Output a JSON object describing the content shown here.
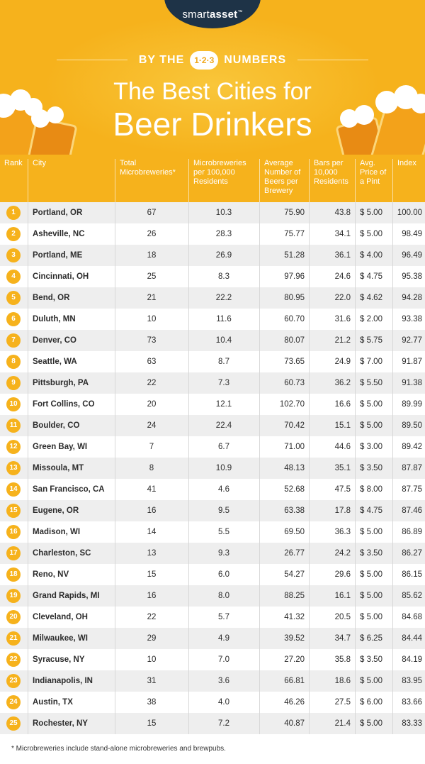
{
  "brand": {
    "name_light": "smart",
    "name_bold": "asset",
    "mark": "™"
  },
  "tagline": {
    "left": "BY THE",
    "badge": "1·2·3",
    "right": "NUMBERS"
  },
  "title": {
    "line1": "The Best Cities for",
    "line2": "Beer Drinkers"
  },
  "colors": {
    "header": "#f6b21c",
    "badge": "#1e3347",
    "row_alt": "#eeeeee"
  },
  "columns": [
    "Rank",
    "City",
    "Total Microbreweries*",
    "Microbreweries per 100,000 Residents",
    "Average Number of Beers per Brewery",
    "Bars per 10,000 Residents",
    "Avg. Price of a Pint",
    "Index"
  ],
  "rows": [
    {
      "rank": "1",
      "city": "Portland, OR",
      "total": "67",
      "per100k": "10.3",
      "beers": "75.90",
      "bars": "43.8",
      "price": "$ 5.00",
      "index": "100.00"
    },
    {
      "rank": "2",
      "city": "Asheville, NC",
      "total": "26",
      "per100k": "28.3",
      "beers": "75.77",
      "bars": "34.1",
      "price": "$ 5.00",
      "index": "98.49"
    },
    {
      "rank": "3",
      "city": "Portland, ME",
      "total": "18",
      "per100k": "26.9",
      "beers": "51.28",
      "bars": "36.1",
      "price": "$ 4.00",
      "index": "96.49"
    },
    {
      "rank": "4",
      "city": "Cincinnati, OH",
      "total": "25",
      "per100k": "8.3",
      "beers": "97.96",
      "bars": "24.6",
      "price": "$ 4.75",
      "index": "95.38"
    },
    {
      "rank": "5",
      "city": "Bend, OR",
      "total": "21",
      "per100k": "22.2",
      "beers": "80.95",
      "bars": "22.0",
      "price": "$ 4.62",
      "index": "94.28"
    },
    {
      "rank": "6",
      "city": "Duluth, MN",
      "total": "10",
      "per100k": "11.6",
      "beers": "60.70",
      "bars": "31.6",
      "price": "$ 2.00",
      "index": "93.38"
    },
    {
      "rank": "7",
      "city": "Denver, CO",
      "total": "73",
      "per100k": "10.4",
      "beers": "80.07",
      "bars": "21.2",
      "price": "$ 5.75",
      "index": "92.77"
    },
    {
      "rank": "8",
      "city": "Seattle, WA",
      "total": "63",
      "per100k": "8.7",
      "beers": "73.65",
      "bars": "24.9",
      "price": "$ 7.00",
      "index": "91.87"
    },
    {
      "rank": "9",
      "city": "Pittsburgh, PA",
      "total": "22",
      "per100k": "7.3",
      "beers": "60.73",
      "bars": "36.2",
      "price": "$ 5.50",
      "index": "91.38"
    },
    {
      "rank": "10",
      "city": "Fort Collins, CO",
      "total": "20",
      "per100k": "12.1",
      "beers": "102.70",
      "bars": "16.6",
      "price": "$ 5.00",
      "index": "89.99"
    },
    {
      "rank": "11",
      "city": "Boulder, CO",
      "total": "24",
      "per100k": "22.4",
      "beers": "70.42",
      "bars": "15.1",
      "price": "$ 5.00",
      "index": "89.50"
    },
    {
      "rank": "12",
      "city": "Green Bay, WI",
      "total": "7",
      "per100k": "6.7",
      "beers": "71.00",
      "bars": "44.6",
      "price": "$ 3.00",
      "index": "89.42"
    },
    {
      "rank": "13",
      "city": "Missoula, MT",
      "total": "8",
      "per100k": "10.9",
      "beers": "48.13",
      "bars": "35.1",
      "price": "$ 3.50",
      "index": "87.87"
    },
    {
      "rank": "14",
      "city": "San Francisco, CA",
      "total": "41",
      "per100k": "4.6",
      "beers": "52.68",
      "bars": "47.5",
      "price": "$ 8.00",
      "index": "87.75"
    },
    {
      "rank": "15",
      "city": "Eugene, OR",
      "total": "16",
      "per100k": "9.5",
      "beers": "63.38",
      "bars": "17.8",
      "price": "$ 4.75",
      "index": "87.46"
    },
    {
      "rank": "16",
      "city": "Madison, WI",
      "total": "14",
      "per100k": "5.5",
      "beers": "69.50",
      "bars": "36.3",
      "price": "$ 5.00",
      "index": "86.89"
    },
    {
      "rank": "17",
      "city": "Charleston, SC",
      "total": "13",
      "per100k": "9.3",
      "beers": "26.77",
      "bars": "24.2",
      "price": "$ 3.50",
      "index": "86.27"
    },
    {
      "rank": "18",
      "city": "Reno, NV",
      "total": "15",
      "per100k": "6.0",
      "beers": "54.27",
      "bars": "29.6",
      "price": "$ 5.00",
      "index": "86.15"
    },
    {
      "rank": "19",
      "city": "Grand Rapids, MI",
      "total": "16",
      "per100k": "8.0",
      "beers": "88.25",
      "bars": "16.1",
      "price": "$ 5.00",
      "index": "85.62"
    },
    {
      "rank": "20",
      "city": "Cleveland, OH",
      "total": "22",
      "per100k": "5.7",
      "beers": "41.32",
      "bars": "20.5",
      "price": "$ 5.00",
      "index": "84.68"
    },
    {
      "rank": "21",
      "city": "Milwaukee, WI",
      "total": "29",
      "per100k": "4.9",
      "beers": "39.52",
      "bars": "34.7",
      "price": "$ 6.25",
      "index": "84.44"
    },
    {
      "rank": "22",
      "city": "Syracuse, NY",
      "total": "10",
      "per100k": "7.0",
      "beers": "27.20",
      "bars": "35.8",
      "price": "$ 3.50",
      "index": "84.19"
    },
    {
      "rank": "23",
      "city": "Indianapolis, IN",
      "total": "31",
      "per100k": "3.6",
      "beers": "66.81",
      "bars": "18.6",
      "price": "$ 5.00",
      "index": "83.95"
    },
    {
      "rank": "24",
      "city": "Austin, TX",
      "total": "38",
      "per100k": "4.0",
      "beers": "46.26",
      "bars": "27.5",
      "price": "$ 6.00",
      "index": "83.66"
    },
    {
      "rank": "25",
      "city": "Rochester, NY",
      "total": "15",
      "per100k": "7.2",
      "beers": "40.87",
      "bars": "21.4",
      "price": "$ 5.00",
      "index": "83.33"
    }
  ],
  "footnote": "* Microbreweries include stand-alone microbreweries and brewpubs."
}
